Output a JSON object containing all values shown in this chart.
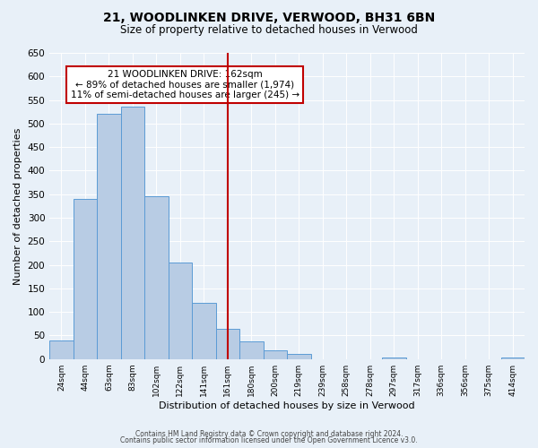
{
  "title": "21, WOODLINKEN DRIVE, VERWOOD, BH31 6BN",
  "subtitle": "Size of property relative to detached houses in Verwood",
  "xlabel": "Distribution of detached houses by size in Verwood",
  "ylabel": "Number of detached properties",
  "bin_labels": [
    "24sqm",
    "44sqm",
    "63sqm",
    "83sqm",
    "102sqm",
    "122sqm",
    "141sqm",
    "161sqm",
    "180sqm",
    "200sqm",
    "219sqm",
    "239sqm",
    "258sqm",
    "278sqm",
    "297sqm",
    "317sqm",
    "336sqm",
    "356sqm",
    "375sqm",
    "414sqm"
  ],
  "bar_values": [
    40,
    340,
    520,
    535,
    345,
    205,
    120,
    65,
    38,
    18,
    10,
    0,
    0,
    0,
    3,
    0,
    0,
    0,
    0,
    3
  ],
  "bar_color": "#b8cce4",
  "bar_edge_color": "#5b9bd5",
  "ylim": [
    0,
    650
  ],
  "yticks": [
    0,
    50,
    100,
    150,
    200,
    250,
    300,
    350,
    400,
    450,
    500,
    550,
    600,
    650
  ],
  "vline_x": 7,
  "vline_color": "#c00000",
  "annotation_title": "21 WOODLINKEN DRIVE: 162sqm",
  "annotation_line1": "← 89% of detached houses are smaller (1,974)",
  "annotation_line2": "11% of semi-detached houses are larger (245) →",
  "annotation_box_color": "#c00000",
  "footer1": "Contains HM Land Registry data © Crown copyright and database right 2024.",
  "footer2": "Contains public sector information licensed under the Open Government Licence v3.0.",
  "background_color": "#e8f0f8",
  "plot_bg_color": "#e8f0f8"
}
